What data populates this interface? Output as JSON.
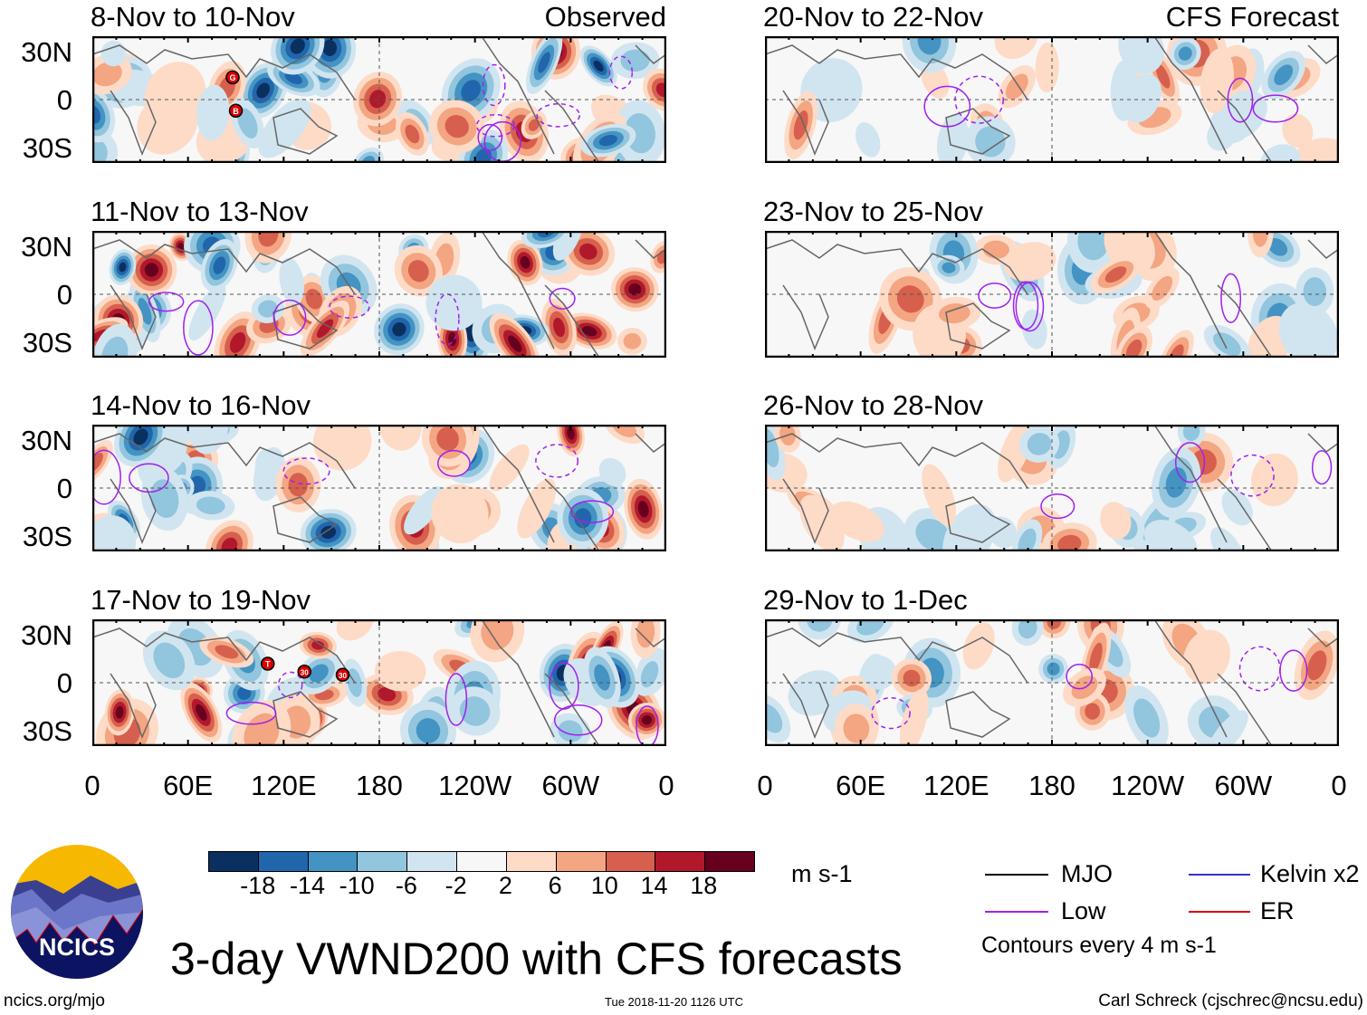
{
  "colormap": {
    "colors": [
      "#0a3060",
      "#2166ac",
      "#4393c3",
      "#92c5de",
      "#d1e5f0",
      "#f7f7f7",
      "#fddbc7",
      "#f4a582",
      "#d6604d",
      "#b2182b",
      "#67001f"
    ],
    "labels": [
      "-18",
      "-14",
      "-10",
      "-6",
      "-2",
      "2",
      "6",
      "10",
      "14",
      "18"
    ],
    "units": "m s-1"
  },
  "left_column": {
    "header_right": "Observed",
    "panels": [
      {
        "title": "8-Nov to 10-Nov",
        "storms": [
          {
            "label": "G",
            "lon": 88,
            "lat": 14
          },
          {
            "label": "B",
            "lon": 90,
            "lat": -7
          }
        ]
      },
      {
        "title": "11-Nov to 13-Nov",
        "storms": []
      },
      {
        "title": "14-Nov to 16-Nov",
        "storms": []
      },
      {
        "title": "17-Nov to 19-Nov",
        "storms": [
          {
            "label": "T",
            "lon": 110,
            "lat": 12
          },
          {
            "label": "30",
            "lon": 133,
            "lat": 7
          },
          {
            "label": "30",
            "lon": 157,
            "lat": 5
          }
        ]
      }
    ]
  },
  "right_column": {
    "header_right": "CFS Forecast",
    "panels": [
      {
        "title": "20-Nov to 22-Nov"
      },
      {
        "title": "23-Nov to 25-Nov"
      },
      {
        "title": "26-Nov to 28-Nov"
      },
      {
        "title": "29-Nov to 1-Dec"
      }
    ]
  },
  "lat_labels": [
    "30N",
    "0",
    "30S"
  ],
  "lon_labels": [
    "0",
    "60E",
    "120E",
    "180",
    "120W",
    "60W",
    "0"
  ],
  "legend": {
    "items": [
      {
        "label": "MJO",
        "color": "#000000"
      },
      {
        "label": "Kelvin x2",
        "color": "#3333cc"
      },
      {
        "label": "Low",
        "color": "#a020f0"
      },
      {
        "label": "ER",
        "color": "#dd0000"
      }
    ],
    "note": "Contours every 4 m s-1"
  },
  "logo_text": "NCICS",
  "main_title": "3-day VWND200 with CFS forecasts",
  "footer": {
    "left": "ncics.org/mjo",
    "center": "Tue 2018-11-20 1126 UTC",
    "right": "Carl Schreck (cjschrec@ncsu.edu)"
  }
}
